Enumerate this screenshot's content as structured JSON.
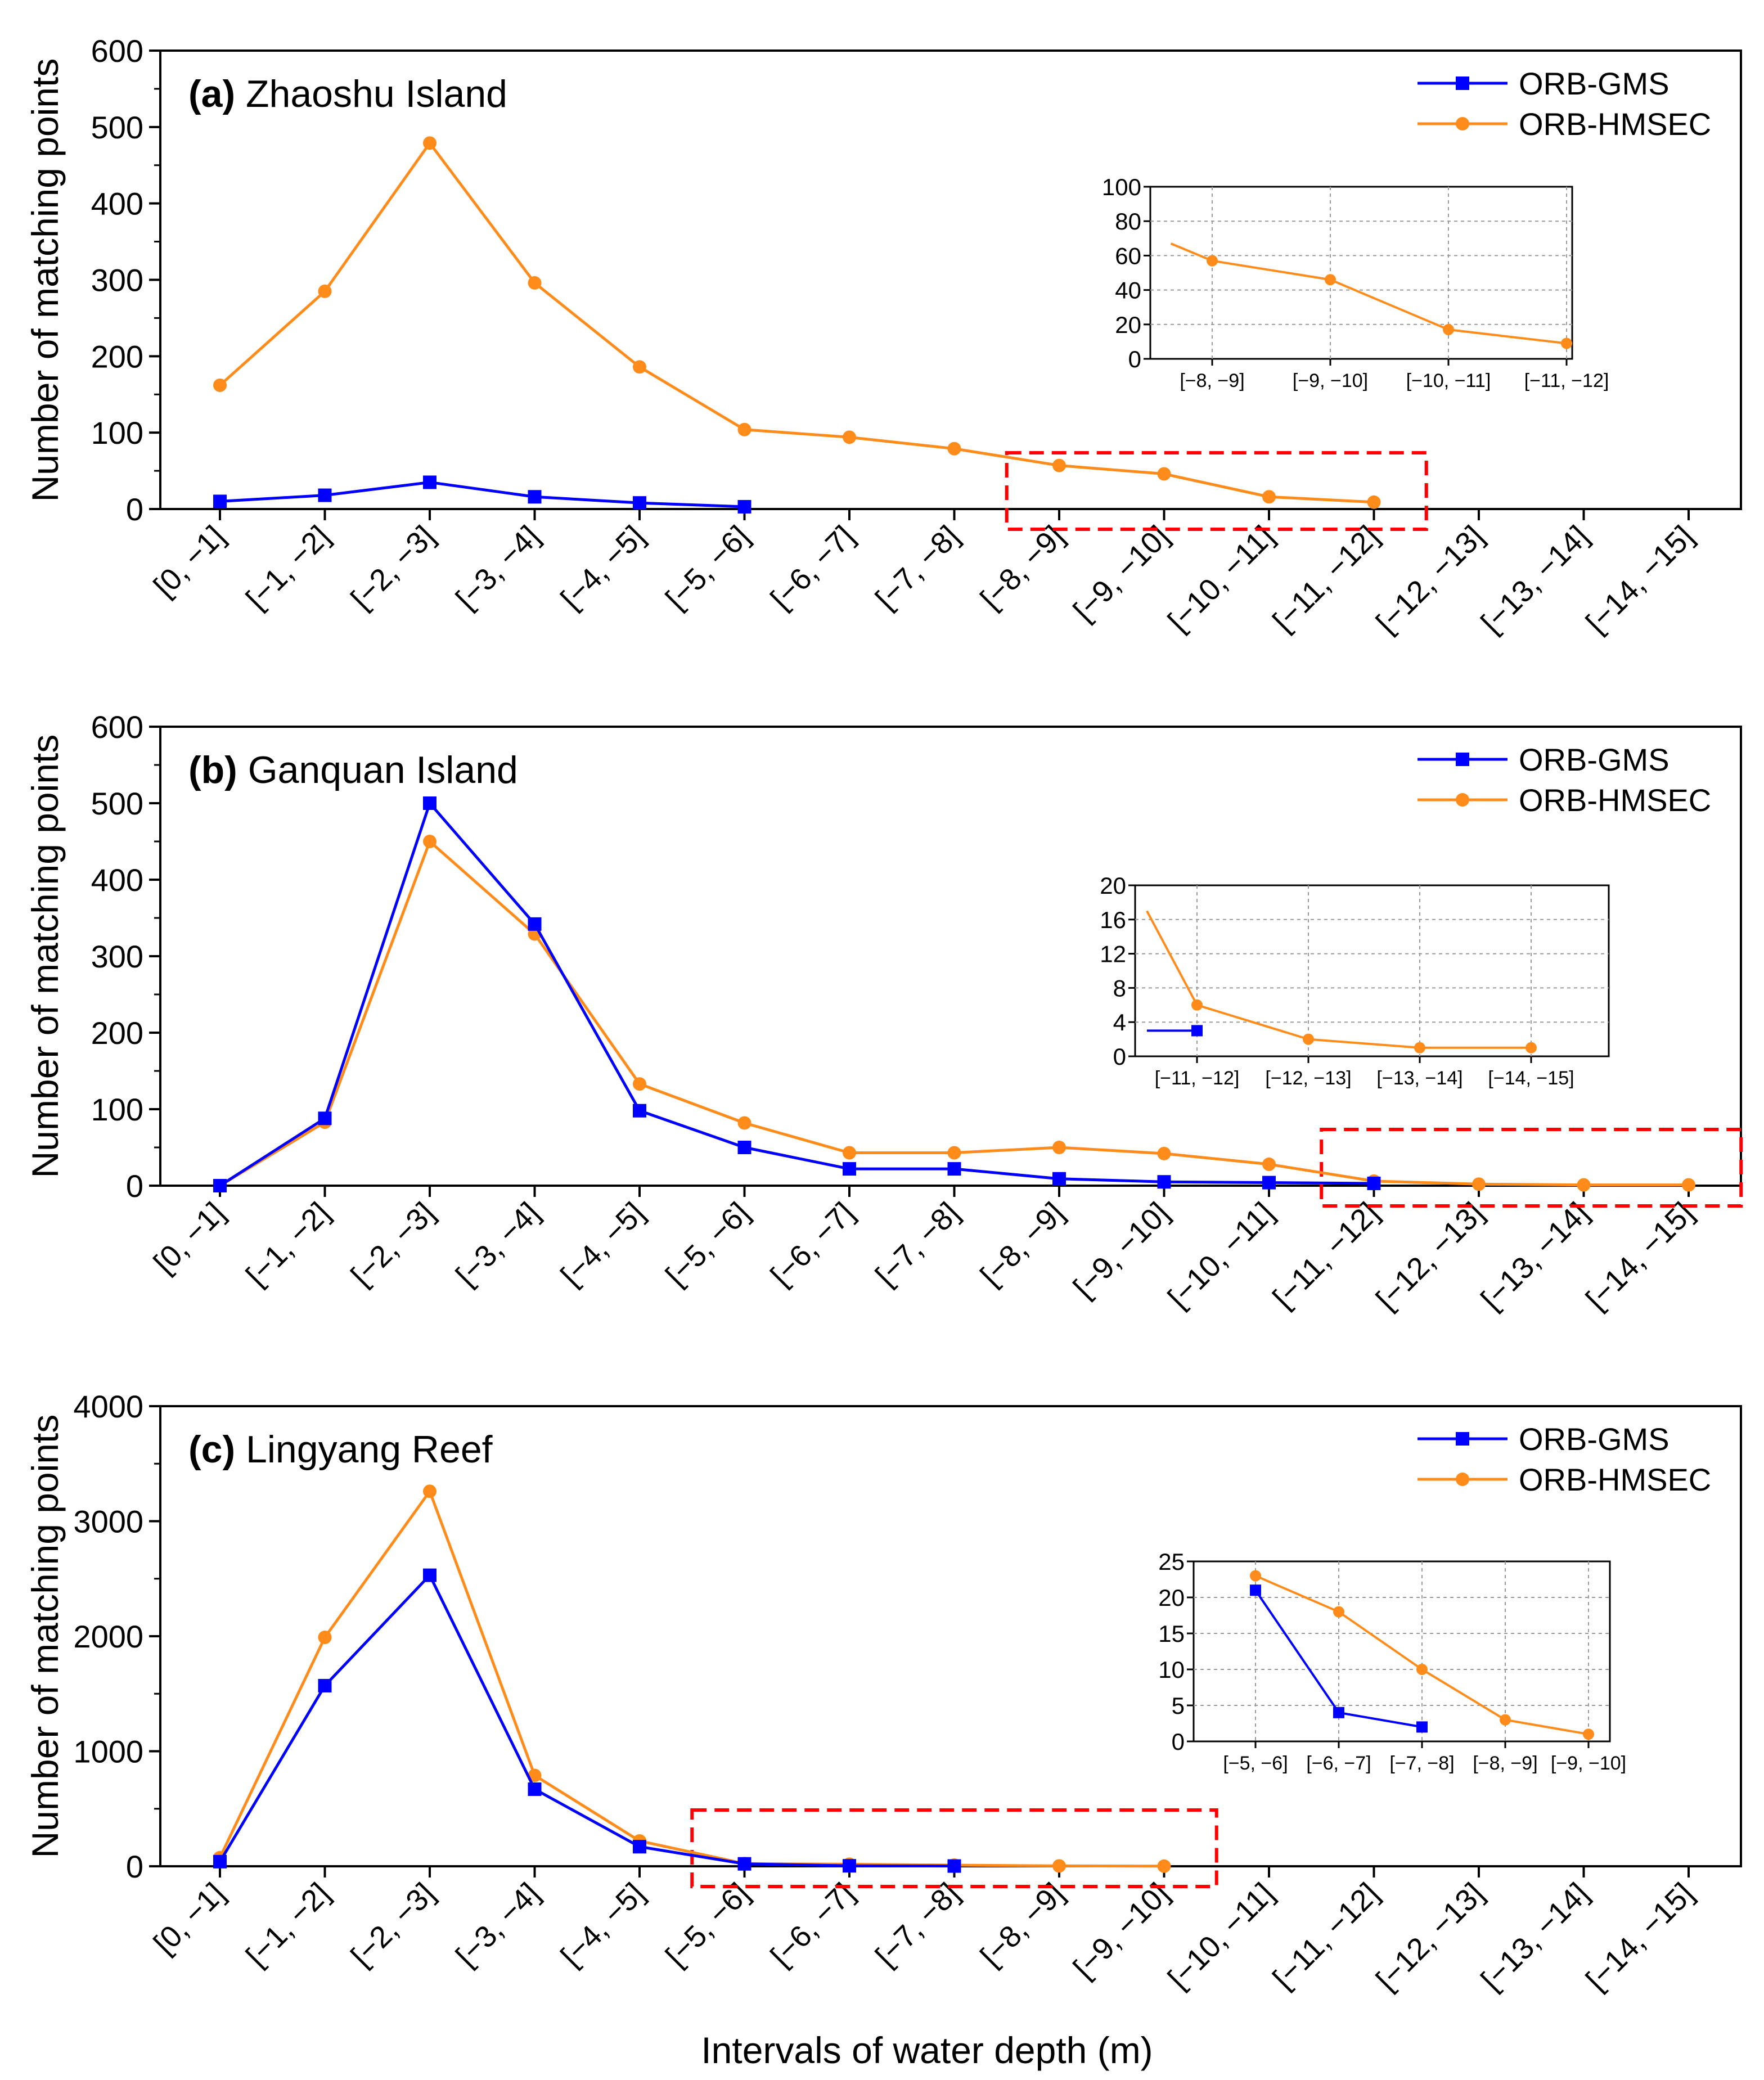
{
  "figure": {
    "xlabel": "Intervals of water depth (m)",
    "colors": {
      "gms": "#0000ff",
      "hmsec": "#ff8c1a",
      "highlight": "#ff0000",
      "grid": "#9a9a9a"
    }
  },
  "chart_data": [
    {
      "type": "line",
      "panel": "(a)",
      "title": "Zhaoshu Island",
      "ylabel": "Number of matching points",
      "ylim": [
        0,
        600
      ],
      "yticks": [
        0,
        100,
        200,
        300,
        400,
        500,
        600
      ],
      "categories": [
        "[0, −1]",
        "[−1, −2]",
        "[−2, −3]",
        "[−3, −4]",
        "[−4, −5]",
        "[−5, −6]",
        "[−6, −7]",
        "[−7, −8]",
        "[−8, −9]",
        "[−9, −10]",
        "[−10, −11]",
        "[−11, −12]",
        "[−12, −13]",
        "[−13, −14]",
        "[−14, −15]"
      ],
      "legend": [
        "ORB-GMS",
        "ORB-HMSEC"
      ],
      "legend_position": "top-right",
      "series": [
        {
          "name": "ORB-GMS",
          "marker": "square",
          "values": [
            10,
            18,
            35,
            16,
            8,
            3,
            null,
            null,
            null,
            null,
            null,
            null,
            null,
            null,
            null
          ]
        },
        {
          "name": "ORB-HMSEC",
          "marker": "circle",
          "values": [
            162,
            285,
            479,
            296,
            186,
            104,
            94,
            79,
            57,
            46,
            16,
            9,
            null,
            null,
            null
          ]
        }
      ],
      "highlight_range": [
        "[−8, −9]",
        "[−11, −12]"
      ],
      "inset": {
        "ylim": [
          0,
          100
        ],
        "yticks": [
          0,
          20,
          40,
          60,
          80,
          100
        ],
        "categories": [
          "[−8, −9]",
          "[−9, −10]",
          "[−10, −11]",
          "[−11, −12]"
        ],
        "series": [
          {
            "name": "ORB-GMS",
            "x": [],
            "values": []
          },
          {
            "name": "ORB-HMSEC",
            "x": [
              -0.35,
              0,
              1,
              2,
              3
            ],
            "values": [
              67,
              57,
              46,
              17,
              9
            ]
          }
        ]
      }
    },
    {
      "type": "line",
      "panel": "(b)",
      "title": "Ganquan Island",
      "ylabel": "Number of matching points",
      "ylim": [
        0,
        600
      ],
      "yticks": [
        0,
        100,
        200,
        300,
        400,
        500,
        600
      ],
      "categories": [
        "[0, −1]",
        "[−1, −2]",
        "[−2, −3]",
        "[−3, −4]",
        "[−4, −5]",
        "[−5, −6]",
        "[−6, −7]",
        "[−7, −8]",
        "[−8, −9]",
        "[−9, −10]",
        "[−10, −11]",
        "[−11, −12]",
        "[−12, −13]",
        "[−13, −14]",
        "[−14, −15]"
      ],
      "legend": [
        "ORB-GMS",
        "ORB-HMSEC"
      ],
      "legend_position": "top-right",
      "series": [
        {
          "name": "ORB-GMS",
          "marker": "square",
          "values": [
            0,
            88,
            500,
            342,
            98,
            50,
            22,
            22,
            9,
            5,
            4,
            3,
            null,
            null,
            null
          ]
        },
        {
          "name": "ORB-HMSEC",
          "marker": "circle",
          "values": [
            0,
            83,
            450,
            329,
            133,
            82,
            43,
            43,
            50,
            42,
            28,
            6,
            2,
            1,
            1
          ]
        }
      ],
      "highlight_range": [
        "[−11, −12]",
        "[−14, −15]"
      ],
      "inset": {
        "ylim": [
          0,
          20
        ],
        "yticks": [
          0,
          4,
          8,
          12,
          16,
          20
        ],
        "categories": [
          "[−11, −12]",
          "[−12, −13]",
          "[−13, −14]",
          "[−14, −15]"
        ],
        "series": [
          {
            "name": "ORB-GMS",
            "x": [
              -0.45,
              0
            ],
            "values": [
              3,
              3
            ]
          },
          {
            "name": "ORB-HMSEC",
            "x": [
              -0.45,
              0,
              1,
              2,
              3
            ],
            "values": [
              17,
              6,
              2,
              1,
              1
            ]
          }
        ]
      }
    },
    {
      "type": "line",
      "panel": "(c)",
      "title": "Lingyang Reef",
      "ylabel": "Number of matching points",
      "ylim": [
        0,
        4000
      ],
      "yticks": [
        0,
        1000,
        2000,
        3000,
        4000
      ],
      "categories": [
        "[0, −1]",
        "[−1, −2]",
        "[−2, −3]",
        "[−3, −4]",
        "[−4, −5]",
        "[−5, −6]",
        "[−6, −7]",
        "[−7, −8]",
        "[−8, −9]",
        "[−9, −10]",
        "[−10, −11]",
        "[−11, −12]",
        "[−12, −13]",
        "[−13, −14]",
        "[−14, −15]"
      ],
      "legend": [
        "ORB-GMS",
        "ORB-HMSEC"
      ],
      "legend_position": "top-right",
      "series": [
        {
          "name": "ORB-GMS",
          "marker": "square",
          "values": [
            40,
            1570,
            2530,
            670,
            170,
            21,
            4,
            2,
            null,
            null,
            null,
            null,
            null,
            null,
            null
          ]
        },
        {
          "name": "ORB-HMSEC",
          "marker": "circle",
          "values": [
            75,
            1990,
            3260,
            790,
            220,
            23,
            18,
            10,
            3,
            1,
            null,
            null,
            null,
            null,
            null
          ]
        }
      ],
      "highlight_range": [
        "[−5, −6]",
        "[−9, −10]"
      ],
      "inset": {
        "ylim": [
          0,
          25
        ],
        "yticks": [
          0,
          5,
          10,
          15,
          20,
          25
        ],
        "categories": [
          "[−5, −6]",
          "[−6, −7]",
          "[−7, −8]",
          "[−8, −9]",
          "[−9, −10]"
        ],
        "series": [
          {
            "name": "ORB-GMS",
            "x": [
              0,
              1,
              2
            ],
            "values": [
              21,
              4,
              2
            ]
          },
          {
            "name": "ORB-HMSEC",
            "x": [
              0,
              1,
              2,
              3,
              4
            ],
            "values": [
              23,
              18,
              10,
              3,
              1
            ]
          }
        ]
      }
    }
  ]
}
